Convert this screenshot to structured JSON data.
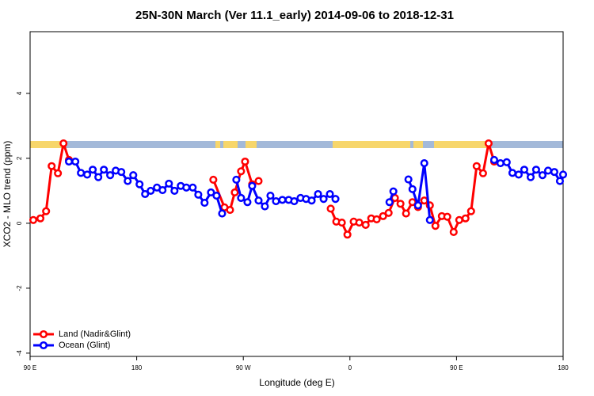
{
  "chart_data": {
    "type": "line",
    "title": "25N-30N March (Ver 11.1_early)   2014-09-06 to 2018-12-31",
    "x_label": "Longitude (deg E)",
    "y_label": "XCO2 - MLO trend (ppm)",
    "xlim": [
      90,
      540
    ],
    "xticks": [
      {
        "value": 90,
        "label": "90 E"
      },
      180,
      {
        "value": 270,
        "label": "90 W"
      },
      {
        "value": 360,
        "label": "0"
      },
      {
        "value": 450,
        "label": "90 E"
      },
      {
        "value": 540,
        "label": "180"
      }
    ],
    "ylim": [
      -4.1,
      5.9
    ],
    "yticks": [
      -4,
      -2,
      0,
      2,
      4
    ],
    "legend": "bottom-left",
    "series": [
      {
        "name": "Land (Nadir&Glint)",
        "color": "#ff0000",
        "x": [
          92.7,
          98.7,
          103.5,
          108.2,
          113.5,
          118.2,
          122.8,
          null,
          244.7,
          254.1,
          258.8,
          262.8,
          268.1,
          271.5,
          277.5,
          282.9,
          null,
          343.8,
          348.5,
          353.2,
          357.9,
          363.2,
          367.9,
          373.3,
          378,
          382.6,
          388,
          392.7,
          398,
          402.7,
          407.4,
          412.8,
          417.5,
          422.8,
          427.5,
          432.2,
          437.6,
          442.2,
          447.6,
          452.3,
          457.6,
          462.3,
          467,
          472.4,
          477.1,
          481.8
        ],
        "values": [
          0.1,
          0.15,
          0.37,
          1.76,
          1.54,
          2.46,
          1.95,
          null,
          1.34,
          0.49,
          0.41,
          0.95,
          1.6,
          1.9,
          1.2,
          1.3,
          null,
          0.45,
          0.05,
          0.02,
          -0.35,
          0.05,
          0.02,
          -0.05,
          0.15,
          0.12,
          0.22,
          0.32,
          0.78,
          0.6,
          0.3,
          0.65,
          0.5,
          0.7,
          0.55,
          -0.08,
          0.22,
          0.2,
          -0.27,
          0.1,
          0.15,
          0.37,
          1.76,
          1.54,
          2.46,
          1.9
        ]
      },
      {
        "name": "Ocean (Glint)",
        "color": "#0000ff",
        "x": [
          122.8,
          128.2,
          132.9,
          138.2,
          142.9,
          147.6,
          152.3,
          157.6,
          162.3,
          167,
          172.4,
          177.1,
          182.4,
          187.1,
          191.8,
          197.1,
          201.8,
          207.2,
          211.9,
          217.2,
          221.9,
          227.3,
          232,
          237.3,
          242.7,
          247.4,
          252.1,
          null,
          264.1,
          268.1,
          273.5,
          277.5,
          282.9,
          288.2,
          292.9,
          297.6,
          303,
          308.3,
          313,
          318.3,
          323,
          327.7,
          333.1,
          337.8,
          343.1,
          347.8,
          null,
          393.4,
          396.7,
          null,
          409.4,
          412.8,
          417.5,
          422.8,
          427.5,
          null,
          481.8,
          487.1,
          492.4,
          497.2,
          502.5,
          507.2,
          512.6,
          517.2,
          522.6,
          527.3,
          532.6,
          537.3,
          540
        ],
        "values": [
          1.9,
          1.9,
          1.55,
          1.5,
          1.65,
          1.42,
          1.65,
          1.48,
          1.62,
          1.58,
          1.3,
          1.48,
          1.2,
          0.9,
          1.0,
          1.1,
          1.02,
          1.22,
          1.0,
          1.15,
          1.1,
          1.1,
          0.88,
          0.63,
          0.95,
          0.85,
          0.3,
          null,
          1.34,
          0.78,
          0.65,
          1.15,
          0.7,
          0.52,
          0.85,
          0.68,
          0.72,
          0.72,
          0.68,
          0.78,
          0.75,
          0.7,
          0.9,
          0.75,
          0.9,
          0.75,
          null,
          0.65,
          0.98,
          null,
          1.35,
          1.05,
          0.55,
          1.85,
          0.1,
          null,
          1.95,
          1.85,
          1.88,
          1.55,
          1.5,
          1.65,
          1.42,
          1.65,
          1.48,
          1.62,
          1.58,
          1.3,
          1.5
        ]
      }
    ]
  }
}
